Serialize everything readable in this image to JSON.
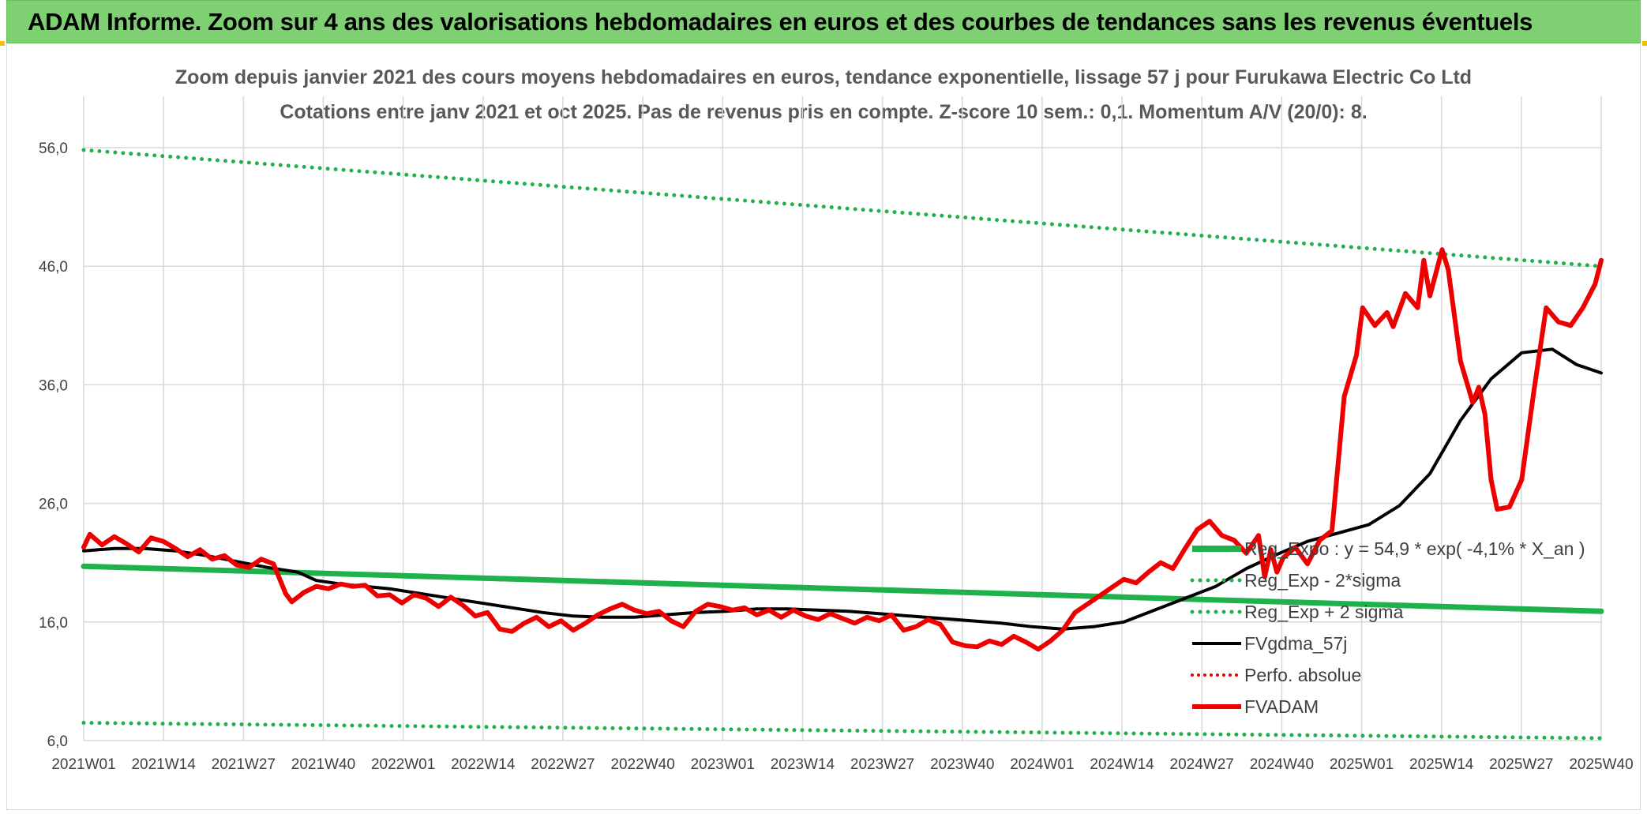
{
  "banner": {
    "title": "ADAM Informe. Zoom sur 4 ans des valorisations hebdomadaires en euros et des courbes de tendances sans les revenus éventuels"
  },
  "colors": {
    "banner_bg": "#7fcf73",
    "reg_expo": "#1fb14c",
    "sigma_lines": "#1fb14c",
    "fvgdma": "#000000",
    "perfo": "#e00000",
    "fvadam": "#ee0000",
    "grid": "#d9d9d9"
  },
  "chart_data": {
    "type": "line",
    "title": "Zoom depuis janvier 2021 des cours moyens hebdomadaires en euros, tendance exponentielle, lissage 57 j pour Furukawa Electric Co Ltd",
    "subtitle": "Cotations entre janv 2021 et oct 2025. Pas de revenus pris en compte. Z-score 10 sem.: 0,1. Momentum A/V (20/0): 8.",
    "xlabel": "",
    "ylabel": "",
    "ylim": [
      6,
      56
    ],
    "y_ticks": [
      "56,0",
      "46,0",
      "36,0",
      "26,0",
      "16,0",
      "6,0"
    ],
    "y_tick_values": [
      56,
      46,
      36,
      26,
      16,
      6
    ],
    "x_tick_labels": [
      "2021W01",
      "2021W14",
      "2021W27",
      "2021W40",
      "2022W01",
      "2022W14",
      "2022W27",
      "2022W40",
      "2023W01",
      "2023W14",
      "2023W27",
      "2023W40",
      "2024W01",
      "2024W14",
      "2024W27",
      "2024W40",
      "2025W01",
      "2025W14",
      "2025W27",
      "2025W40"
    ],
    "x_range_weeks": [
      0,
      248
    ],
    "grid": true,
    "legend_position": "right-bottom",
    "series": [
      {
        "name": "Reg_Expo : y = 54,9 * exp( -4,1% *  X_an )",
        "style": "solid",
        "points": [
          [
            0,
            20.7
          ],
          [
            248,
            16.9
          ]
        ]
      },
      {
        "name": "Reg_Exp - 2*sigma",
        "style": "dotted",
        "points": [
          [
            0,
            7.5
          ],
          [
            248,
            6.2
          ]
        ]
      },
      {
        "name": "Reg_Exp + 2 sigma",
        "style": "dotted",
        "points": [
          [
            0,
            55.8
          ],
          [
            248,
            46.0
          ]
        ]
      },
      {
        "name": "FVgdma_57j",
        "style": "solid",
        "points": [
          [
            0,
            22.0
          ],
          [
            5,
            22.2
          ],
          [
            10,
            22.2
          ],
          [
            15,
            22.0
          ],
          [
            20,
            21.6
          ],
          [
            25,
            21.1
          ],
          [
            30,
            20.6
          ],
          [
            35,
            20.2
          ],
          [
            38,
            19.5
          ],
          [
            42,
            19.2
          ],
          [
            50,
            18.8
          ],
          [
            60,
            18.0
          ],
          [
            65,
            17.6
          ],
          [
            70,
            17.2
          ],
          [
            75,
            16.8
          ],
          [
            80,
            16.5
          ],
          [
            85,
            16.4
          ],
          [
            90,
            16.4
          ],
          [
            95,
            16.6
          ],
          [
            100,
            16.8
          ],
          [
            105,
            16.9
          ],
          [
            110,
            17.1
          ],
          [
            115,
            17.1
          ],
          [
            120,
            17.0
          ],
          [
            125,
            16.9
          ],
          [
            130,
            16.7
          ],
          [
            135,
            16.5
          ],
          [
            140,
            16.3
          ],
          [
            145,
            16.1
          ],
          [
            150,
            15.9
          ],
          [
            155,
            15.6
          ],
          [
            160,
            15.4
          ],
          [
            165,
            15.6
          ],
          [
            170,
            16.0
          ],
          [
            175,
            17.0
          ],
          [
            180,
            18.0
          ],
          [
            185,
            19.0
          ],
          [
            190,
            20.5
          ],
          [
            195,
            21.7
          ],
          [
            200,
            22.8
          ],
          [
            205,
            23.5
          ],
          [
            210,
            24.2
          ],
          [
            215,
            25.8
          ],
          [
            220,
            28.5
          ],
          [
            225,
            33.0
          ],
          [
            230,
            36.5
          ],
          [
            235,
            38.7
          ],
          [
            240,
            39.0
          ],
          [
            244,
            37.7
          ],
          [
            248,
            37.0
          ]
        ]
      },
      {
        "name": "Perfo. absolue",
        "style": "dotted",
        "points": []
      },
      {
        "name": "FVADAM",
        "style": "solid",
        "points": [
          [
            0,
            22.3
          ],
          [
            1,
            23.4
          ],
          [
            3,
            22.5
          ],
          [
            5,
            23.2
          ],
          [
            7,
            22.6
          ],
          [
            9,
            21.9
          ],
          [
            11,
            23.1
          ],
          [
            13,
            22.8
          ],
          [
            15,
            22.2
          ],
          [
            17,
            21.5
          ],
          [
            19,
            22.1
          ],
          [
            21,
            21.3
          ],
          [
            23,
            21.6
          ],
          [
            25,
            20.8
          ],
          [
            27,
            20.6
          ],
          [
            29,
            21.3
          ],
          [
            31,
            20.9
          ],
          [
            33,
            18.4
          ],
          [
            34,
            17.7
          ],
          [
            36,
            18.5
          ],
          [
            38,
            19.0
          ],
          [
            40,
            18.8
          ],
          [
            42,
            19.2
          ],
          [
            44,
            19.0
          ],
          [
            46,
            19.1
          ],
          [
            48,
            18.2
          ],
          [
            50,
            18.3
          ],
          [
            52,
            17.6
          ],
          [
            54,
            18.3
          ],
          [
            56,
            18.0
          ],
          [
            58,
            17.3
          ],
          [
            60,
            18.1
          ],
          [
            62,
            17.4
          ],
          [
            64,
            16.5
          ],
          [
            66,
            16.8
          ],
          [
            68,
            15.4
          ],
          [
            70,
            15.2
          ],
          [
            72,
            15.9
          ],
          [
            74,
            16.4
          ],
          [
            76,
            15.6
          ],
          [
            78,
            16.1
          ],
          [
            80,
            15.3
          ],
          [
            82,
            15.9
          ],
          [
            84,
            16.6
          ],
          [
            86,
            17.1
          ],
          [
            88,
            17.5
          ],
          [
            90,
            17.0
          ],
          [
            92,
            16.7
          ],
          [
            94,
            16.9
          ],
          [
            96,
            16.1
          ],
          [
            98,
            15.6
          ],
          [
            100,
            16.9
          ],
          [
            102,
            17.5
          ],
          [
            104,
            17.3
          ],
          [
            106,
            17.0
          ],
          [
            108,
            17.2
          ],
          [
            110,
            16.6
          ],
          [
            112,
            17.0
          ],
          [
            114,
            16.4
          ],
          [
            116,
            17.0
          ],
          [
            118,
            16.5
          ],
          [
            120,
            16.2
          ],
          [
            122,
            16.7
          ],
          [
            124,
            16.3
          ],
          [
            126,
            15.9
          ],
          [
            128,
            16.4
          ],
          [
            130,
            16.1
          ],
          [
            132,
            16.6
          ],
          [
            134,
            15.3
          ],
          [
            136,
            15.6
          ],
          [
            138,
            16.2
          ],
          [
            140,
            15.8
          ],
          [
            142,
            14.3
          ],
          [
            144,
            14.0
          ],
          [
            146,
            13.9
          ],
          [
            148,
            14.4
          ],
          [
            150,
            14.1
          ],
          [
            152,
            14.8
          ],
          [
            154,
            14.3
          ],
          [
            156,
            13.7
          ],
          [
            158,
            14.4
          ],
          [
            160,
            15.3
          ],
          [
            162,
            16.8
          ],
          [
            164,
            17.5
          ],
          [
            166,
            18.2
          ],
          [
            168,
            18.9
          ],
          [
            170,
            19.6
          ],
          [
            172,
            19.3
          ],
          [
            174,
            20.2
          ],
          [
            176,
            21.0
          ],
          [
            178,
            20.5
          ],
          [
            180,
            22.2
          ],
          [
            182,
            23.8
          ],
          [
            184,
            24.5
          ],
          [
            186,
            23.3
          ],
          [
            188,
            22.9
          ],
          [
            190,
            21.8
          ],
          [
            192,
            23.3
          ],
          [
            193,
            19.8
          ],
          [
            194,
            22.1
          ],
          [
            195,
            20.2
          ],
          [
            196,
            21.4
          ],
          [
            198,
            22.3
          ],
          [
            200,
            20.9
          ],
          [
            202,
            22.9
          ],
          [
            204,
            23.7
          ],
          [
            206,
            35.0
          ],
          [
            208,
            38.5
          ],
          [
            209,
            42.5
          ],
          [
            211,
            41.0
          ],
          [
            213,
            42.1
          ],
          [
            214,
            40.9
          ],
          [
            216,
            43.7
          ],
          [
            218,
            42.5
          ],
          [
            219,
            46.5
          ],
          [
            220,
            43.5
          ],
          [
            222,
            47.4
          ],
          [
            223,
            45.7
          ],
          [
            225,
            38.0
          ],
          [
            227,
            34.5
          ],
          [
            228,
            35.8
          ],
          [
            229,
            33.5
          ],
          [
            230,
            28.0
          ],
          [
            231,
            25.5
          ],
          [
            233,
            25.7
          ],
          [
            235,
            28.0
          ],
          [
            237,
            35.5
          ],
          [
            239,
            42.5
          ],
          [
            241,
            41.3
          ],
          [
            243,
            41.0
          ],
          [
            245,
            42.5
          ],
          [
            247,
            44.5
          ],
          [
            248,
            46.5
          ]
        ]
      }
    ]
  }
}
